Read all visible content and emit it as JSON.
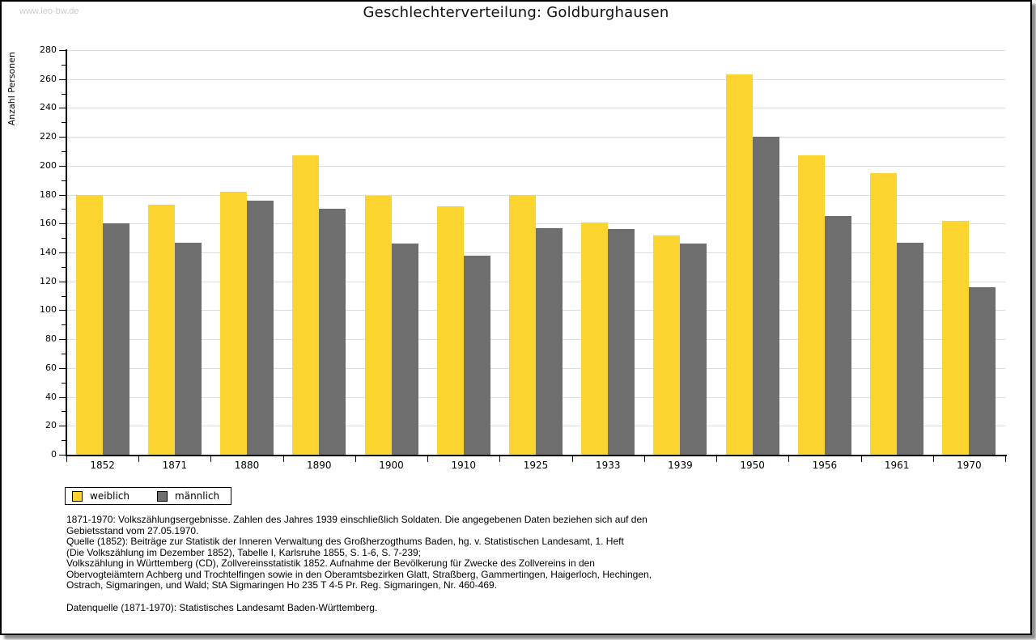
{
  "watermark": {
    "text": "www.leo-bw.de"
  },
  "header": {
    "title": "Geschlechterverteilung: Goldburghausen"
  },
  "chart_data": {
    "type": "bar",
    "title": "Geschlechterverteilung: Goldburghausen",
    "ylabel": "Anzahl Personen",
    "xlabel": "",
    "ylim": [
      0,
      280
    ],
    "ytick_step": 20,
    "yticks": [
      0,
      20,
      40,
      60,
      80,
      100,
      120,
      140,
      160,
      180,
      200,
      220,
      240,
      260,
      280
    ],
    "grid": true,
    "gridline_color": "#dcdcdc",
    "legend_position": "bottom-left",
    "categories": [
      "1852",
      "1871",
      "1880",
      "1890",
      "1900",
      "1910",
      "1925",
      "1933",
      "1939",
      "1950",
      "1956",
      "1961",
      "1970"
    ],
    "series": [
      {
        "name": "weiblich",
        "color": "#fcd42f",
        "values": [
          180,
          173,
          182,
          207,
          179,
          172,
          180,
          161,
          152,
          263,
          207,
          195,
          162
        ]
      },
      {
        "name": "männlich",
        "color": "#6e6e6e",
        "values": [
          160,
          147,
          176,
          170,
          146,
          138,
          157,
          156,
          146,
          220,
          165,
          147,
          116
        ]
      }
    ]
  },
  "legend": {
    "items": [
      {
        "label": "weiblich",
        "color": "#fcd42f"
      },
      {
        "label": "männlich",
        "color": "#6e6e6e"
      }
    ]
  },
  "footer": {
    "lines": [
      "1871-1970: Volkszählungsergebnisse. Zahlen des Jahres 1939 einschließlich Soldaten. Die angegebenen Daten beziehen sich auf den",
      "Gebietsstand vom 27.05.1970.",
      "Quelle (1852): Beiträge zur Statistik der Inneren Verwaltung des Großherzogthums Baden, hg. v. Statistischen Landesamt, 1. Heft",
      "(Die Volkszählung im Dezember 1852), Tabelle I, Karlsruhe 1855, S. 1-6, S. 7-239;",
      "Volkszählung in Württemberg (CD), Zollvereinsstatistik 1852. Aufnahme der Bevölkerung für Zwecke des Zollvereins in den",
      "Obervogteiämtern Achberg und Trochtelfingen sowie in den Oberamtsbezirken Glatt, Straßberg, Gammertingen, Haigerloch, Hechingen,",
      "Ostrach, Sigmaringen, und Wald; StA Sigmaringen Ho 235 T 4-5 Pr. Reg. Sigmaringen, Nr. 460-469."
    ],
    "datasource": "Datenquelle (1871-1970): Statistisches Landesamt Baden-Württemberg."
  }
}
